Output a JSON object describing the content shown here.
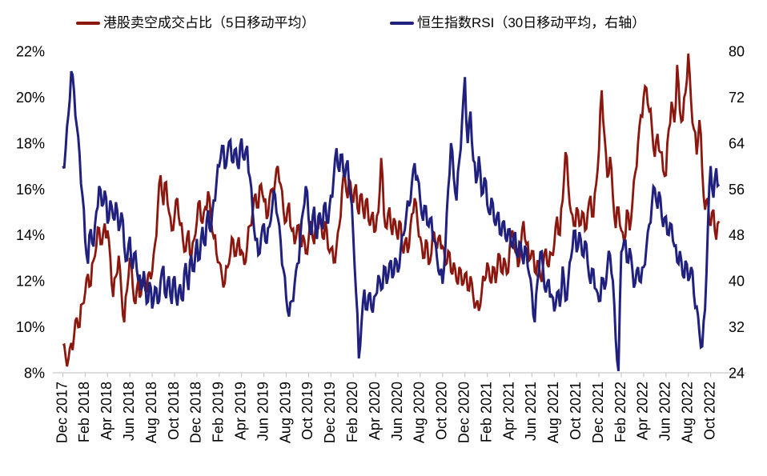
{
  "legend": [
    {
      "label": "港股卖空成交占比（5日移动平均）",
      "color": "#8B170E"
    },
    {
      "label": "恒生指数RSI（30日移动平均，右轴）",
      "color": "#20207E"
    }
  ],
  "chart_data": {
    "type": "line",
    "title": "",
    "x_start": "Dec 2017",
    "x_end": "Oct 2022",
    "sample_step_months": 0.25,
    "render_jitter": {
      "per_segment_midpoint": true,
      "amplitude_left": 0.5,
      "amplitude_right": 2.0,
      "pattern": [
        1,
        -0.55,
        0.85,
        -1,
        0.4,
        -0.75,
        0.95,
        -0.3,
        0.6,
        -0.9,
        0.35,
        -0.65
      ]
    },
    "x_tick_labels": [
      "Dec 2017",
      "Feb 2018",
      "Apr 2018",
      "Jun 2018",
      "Aug 2018",
      "Oct 2018",
      "Dec 2018",
      "Feb 2019",
      "Apr 2019",
      "Jun 2019",
      "Aug 2019",
      "Oct 2019",
      "Dec 2019",
      "Feb 2020",
      "Apr 2020",
      "Jun 2020",
      "Aug 2020",
      "Oct 2020",
      "Dec 2020",
      "Feb 2021",
      "Apr 2021",
      "Jun 2021",
      "Aug 2021",
      "Oct 2021",
      "Dec 2021",
      "Feb 2022",
      "Apr 2022",
      "Jun 2022",
      "Aug 2022",
      "Oct 2022"
    ],
    "left_axis": {
      "ticks": [
        "22%",
        "20%",
        "18%",
        "16%",
        "14%",
        "12%",
        "10%",
        "8%"
      ],
      "min": 8,
      "max": 22
    },
    "right_axis": {
      "ticks": [
        "80",
        "72",
        "64",
        "56",
        "48",
        "40",
        "32",
        "24"
      ],
      "min": 24,
      "max": 80
    },
    "grid": false,
    "legend_position": "top",
    "series": [
      {
        "name": "港股卖空成交占比（5日移动平均）",
        "axis": "left",
        "color": "#8B170E",
        "values": [
          9.2,
          8.7,
          8.6,
          9.3,
          9.6,
          10.4,
          10.0,
          11.0,
          11.5,
          12.3,
          11.8,
          12.9,
          13.5,
          14.3,
          13.6,
          14.5,
          14.2,
          13.0,
          11.3,
          12.2,
          13.1,
          11.5,
          10.2,
          11.6,
          13.0,
          11.8,
          11.0,
          12.0,
          11.4,
          12.2,
          11.5,
          12.4,
          12.4,
          13.6,
          15.2,
          16.6,
          15.3,
          16.3,
          15.0,
          14.2,
          14.8,
          15.6,
          14.4,
          13.8,
          13.3,
          14.2,
          13.0,
          13.8,
          14.6,
          15.5,
          14.5,
          15.2,
          15.9,
          14.8,
          13.9,
          13.2,
          12.8,
          12.2,
          11.9,
          12.6,
          13.2,
          13.8,
          13.1,
          13.9,
          13.3,
          12.7,
          13.5,
          14.4,
          15.0,
          15.8,
          15.2,
          16.2,
          15.5,
          14.7,
          15.6,
          16.0,
          16.3,
          17.0,
          16.2,
          15.1,
          14.6,
          15.4,
          14.2,
          13.6,
          14.4,
          13.5,
          14.0,
          13.2,
          13.8,
          14.6,
          13.6,
          14.3,
          14.9,
          13.9,
          14.6,
          13.4,
          13.4,
          12.8,
          13.5,
          14.4,
          16.0,
          16.6,
          15.6,
          16.3,
          15.4,
          16.2,
          14.9,
          15.8,
          14.7,
          15.6,
          14.4,
          15.0,
          14.2,
          15.0,
          17.35,
          14.9,
          14.3,
          15.2,
          14.0,
          14.6,
          13.8,
          14.5,
          13.2,
          13.9,
          13.5,
          14.9,
          15.6,
          14.6,
          13.9,
          13.0,
          13.8,
          12.7,
          13.2,
          14.1,
          13.4,
          14.0,
          13.5,
          12.7,
          13.3,
          12.4,
          12.8,
          12.0,
          12.6,
          11.8,
          12.3,
          11.6,
          12.2,
          11.3,
          11.0,
          10.7,
          11.5,
          12.0,
          12.8,
          12.0,
          12.6,
          11.9,
          13.2,
          12.4,
          13.0,
          12.3,
          13.4,
          14.2,
          13.3,
          12.6,
          13.5,
          14.6,
          13.6,
          12.9,
          13.3,
          12.4,
          12.9,
          12.2,
          12.7,
          13.4,
          12.6,
          13.2,
          13.6,
          14.8,
          14.0,
          15.5,
          17.6,
          16.2,
          15.0,
          14.4,
          15.2,
          14.4,
          15.0,
          14.2,
          15.0,
          15.7,
          14.8,
          16.2,
          17.7,
          20.3,
          18.3,
          16.5,
          17.4,
          15.7,
          14.3,
          15.2,
          14.2,
          13.7,
          15.1,
          14.2,
          15.4,
          16.7,
          18.0,
          19.2,
          20.0,
          20.4,
          19.4,
          18.6,
          17.4,
          18.4,
          17.6,
          16.8,
          16.6,
          18.6,
          19.8,
          18.9,
          21.4,
          19.4,
          19.0,
          20.2,
          21.9,
          19.8,
          18.6,
          17.5,
          19.0,
          16.8,
          15.1,
          15.6,
          14.4,
          15.1,
          13.8,
          14.6
        ]
      },
      {
        "name": "恒生指数RSI（30日移动平均，右轴）",
        "axis": "right",
        "color": "#20207E",
        "values": [
          60,
          63,
          69,
          76.5,
          73,
          67,
          62,
          55,
          47,
          43,
          49,
          46,
          52,
          56.5,
          53,
          55.7,
          50,
          54,
          51,
          53.7,
          48.7,
          51.9,
          46,
          43.6,
          47.7,
          42.1,
          45,
          40,
          38.4,
          41.7,
          36.1,
          39.8,
          35.2,
          38.9,
          36,
          40,
          42.6,
          37,
          40.8,
          36,
          40.8,
          35.7,
          39.4,
          36.5,
          43.1,
          38.4,
          44.5,
          41.7,
          47.3,
          43.8,
          49.4,
          46.1,
          52.3,
          48.5,
          54,
          57,
          60,
          63.5,
          59.5,
          62.5,
          64.5,
          60.5,
          63,
          59.5,
          64.8,
          61,
          63.5,
          58,
          52,
          47,
          44.5,
          47.5,
          50,
          46.5,
          49.5,
          53,
          55,
          51,
          47,
          42,
          37,
          33.8,
          36.5,
          39.5,
          43,
          47,
          52,
          56.5,
          50.9,
          48,
          52.9,
          47.3,
          51.9,
          49,
          53.7,
          50,
          55,
          58,
          63.1,
          59,
          62,
          58,
          61,
          55,
          48,
          38,
          26.5,
          33,
          38.5,
          35,
          38,
          34.5,
          37.5,
          41,
          38.5,
          42.5,
          39.5,
          43,
          40.5,
          44,
          41.5,
          45.5,
          48,
          51.5,
          53,
          57,
          60.5,
          58,
          54,
          50.5,
          53,
          49.5,
          51,
          47,
          44,
          41,
          39.5,
          46,
          56,
          64,
          58,
          54,
          61,
          68,
          75.5,
          64,
          69.5,
          61,
          57,
          61.7,
          55,
          58,
          53.3,
          51.5,
          53.5,
          49.6,
          52,
          48,
          50.5,
          46.8,
          49,
          45.9,
          48.5,
          44,
          46.5,
          42.9,
          45.5,
          41.2,
          38,
          32.8,
          40,
          45,
          42,
          38,
          40.3,
          37.5,
          34.7,
          38,
          35.5,
          42.5,
          36.6,
          40,
          44,
          48.7,
          45,
          48.5,
          44.5,
          47,
          43,
          39.5,
          42,
          38.5,
          36.5,
          40.5,
          38.5,
          42.5,
          44.5,
          40,
          30,
          24.3,
          45,
          47,
          43.3,
          45.7,
          41.9,
          39.6,
          42.4,
          39.8,
          42.4,
          45.9,
          49.8,
          53.6,
          56.1,
          52.6,
          54.5,
          49.4,
          51.2,
          48,
          49.8,
          46.1,
          43.3,
          45.2,
          41,
          43.5,
          40,
          42.4,
          37.7,
          35.5,
          31,
          28.6,
          35,
          49,
          60,
          54.5,
          59.6,
          56.8
        ]
      }
    ]
  }
}
